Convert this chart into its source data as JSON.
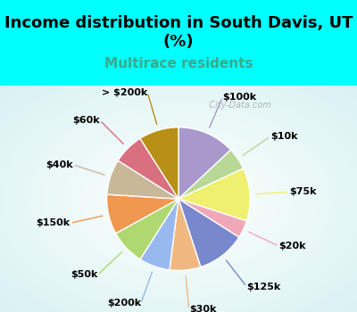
{
  "title": "Income distribution in South Davis, UT\n(%)",
  "subtitle": "Multirace residents",
  "subtitle_color": "#3aaa8a",
  "background_color": "#00FFFF",
  "chart_bg_left": "#d0ede0",
  "chart_bg_right": "#e8f8f8",
  "labels": [
    "$100k",
    "$10k",
    "$75k",
    "$20k",
    "$125k",
    "$30k",
    "$200k",
    "$50k",
    "$150k",
    "$40k",
    "$60k",
    "> $200k"
  ],
  "values": [
    13,
    5,
    12,
    4,
    11,
    7,
    7,
    8,
    9,
    8,
    7,
    9
  ],
  "colors": [
    "#a898cc",
    "#b8d898",
    "#f0f070",
    "#f0a8b8",
    "#7888cc",
    "#f0b880",
    "#98b8f0",
    "#b0d870",
    "#f09850",
    "#c8b898",
    "#d87080",
    "#b89018"
  ],
  "wedge_edge_color": "white",
  "label_fontsize": 8,
  "title_fontsize": 13,
  "subtitle_fontsize": 11,
  "watermark": "  City-Data.com"
}
